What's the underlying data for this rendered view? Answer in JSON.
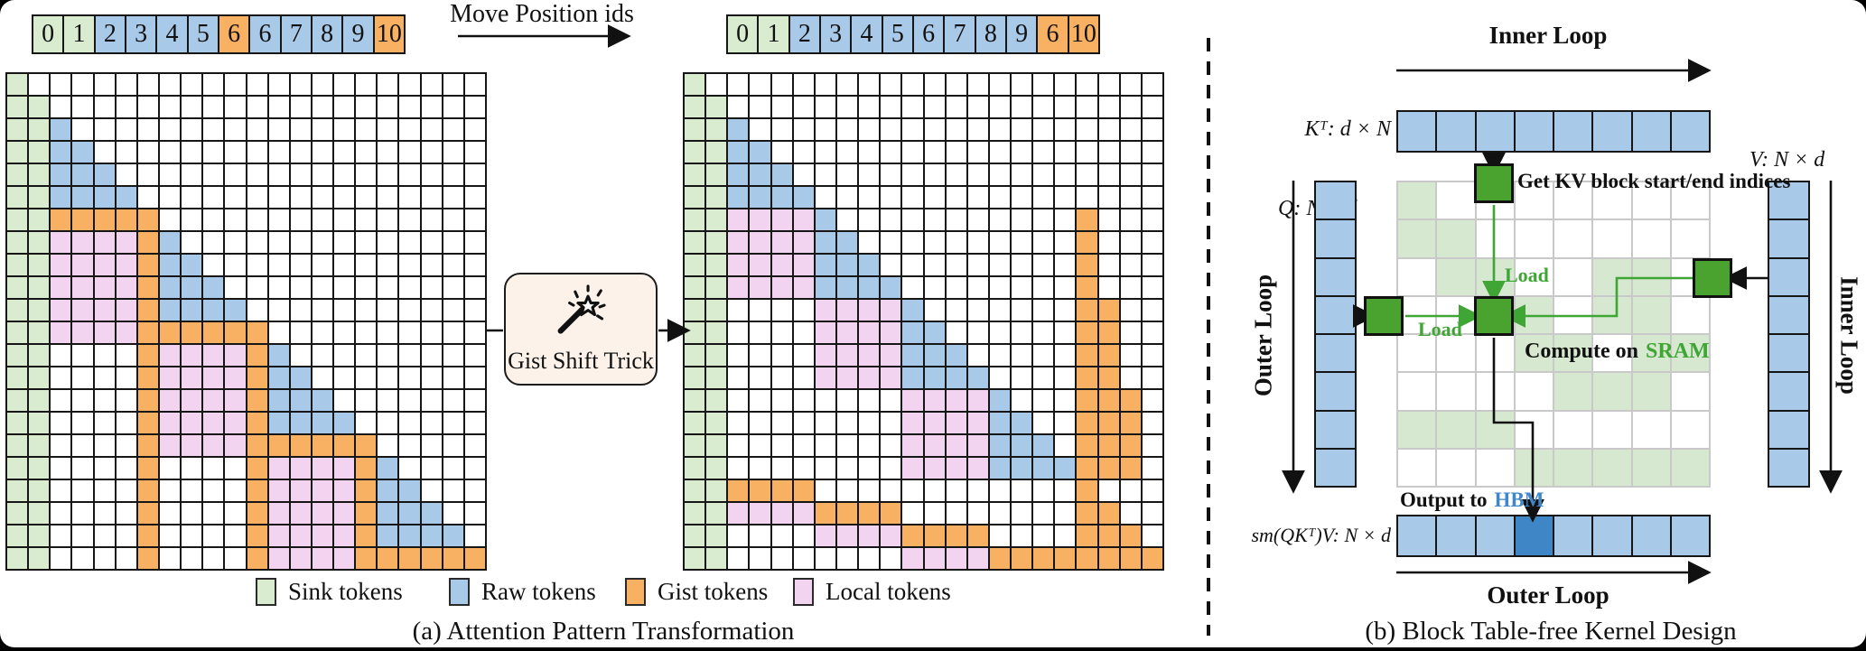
{
  "panel_a": {
    "caption": "(a) Attention Pattern Transformation",
    "move_label": "Move Position ids",
    "gist_box_label": "Gist Shift Trick",
    "sequences": {
      "left": {
        "values": [
          "0",
          "1",
          "2",
          "3",
          "4",
          "5",
          "6",
          "6",
          "7",
          "8",
          "9",
          "10"
        ],
        "colors": [
          "S",
          "S",
          "B",
          "B",
          "B",
          "B",
          "G",
          "B",
          "B",
          "B",
          "B",
          "G"
        ]
      },
      "right": {
        "values": [
          "0",
          "1",
          "2",
          "3",
          "4",
          "5",
          "6",
          "7",
          "8",
          "9",
          "6",
          "10"
        ],
        "colors": [
          "S",
          "S",
          "B",
          "B",
          "B",
          "B",
          "B",
          "B",
          "B",
          "B",
          "G",
          "G"
        ]
      }
    },
    "legend": [
      {
        "label": "Sink tokens",
        "key": "S"
      },
      {
        "label": "Raw tokens",
        "key": "B"
      },
      {
        "label": "Gist tokens",
        "key": "G"
      },
      {
        "label": "Local tokens",
        "key": "L"
      }
    ],
    "grid_left": [
      "S.....................",
      "SS....................",
      "SSB...................",
      "SSBB..................",
      "SSBBB.................",
      "SSBBBB................",
      "SSGGGGG...............",
      "SSLLLLGB..............",
      "SSLLLLGBB.............",
      "SSLLLLGBBB............",
      "SSLLLLGBBBB...........",
      "SSLLLLGGGGGG..........",
      "SS....GLLLLGB.........",
      "SS....GLLLLGBB........",
      "SS....GLLLLGBBB.......",
      "SS....GLLLLGBBBB......",
      "SS....GLLLLGGGGGG.....",
      "SS....G....GLLLLGB....",
      "SS....G....GLLLLGBB...",
      "SS....G....GLLLLGBBB..",
      "SS....G....GLLLLGBBBB.",
      "SS....G....GLLLLGGGGGG"
    ],
    "grid_right": [
      "S.....................",
      "SS....................",
      "SSB...................",
      "SSBB..................",
      "SSBBB.................",
      "SSBBBB................",
      "SSLLLLB...........G...",
      "SSLLLLBB..........G...",
      "SSLLLLBBB.........G...",
      "SSLLLLBBBB........G...",
      "SS....LLLLB.......GG..",
      "SS....LLLLBB......GG..",
      "SS....LLLLBBB.....GG..",
      "SS....LLLLBBBB....GG..",
      "SS........LLLLB...GGG.",
      "SS........LLLLBB..GGG.",
      "SS........LLLLBBB.GGG.",
      "SS........LLLLBBBBGGG.",
      "SSGGGG............G...",
      "SSLLLLGGGG........GG..",
      "SS....LLLLGGGG....GGG.",
      "SS........LLLLGGGGGGGG"
    ]
  },
  "panel_b": {
    "caption": "(b) Block Table-free Kernel Design",
    "inner_loop_top": "Inner Loop",
    "inner_loop_right": "Inner Loop",
    "outer_loop_left": "Outer Loop",
    "outer_loop_bottom": "Outer Loop",
    "k_label": "Kᵀ: d × N",
    "q_label": "Q: N × d",
    "v_label": "V: N × d",
    "output_label": "sm(QKᵀ)V: N × d",
    "get_kv_label": "Get KV block start/end indices",
    "load_label_1": "Load",
    "load_label_2": "Load",
    "compute_label": "Compute on",
    "compute_sram": "SRAM",
    "output_to_label": "Output to",
    "output_hbm": "HBM",
    "k_row": {
      "cells": 8
    },
    "q_col": {
      "cells": 8
    },
    "v_col": {
      "cells": 8
    },
    "output_row": {
      "cells": 8,
      "highlight_index": 3
    },
    "block_grid": [
      "g.......",
      "gg......",
      ".gg..gg.",
      "..gg.gg.",
      "...gg.gg",
      "....ggg.",
      "ggg.....",
      "...ggggg"
    ]
  },
  "colors": {
    "sink": "#d9ecd0",
    "raw": "#a9c9e8",
    "gist": "#f8b063",
    "local": "#f2d3f0",
    "block_green": "#4aa32f",
    "faded_green": "#d6e8cf",
    "output_highlight": "#3e86c6",
    "accent_green": "#3fa535",
    "hbm_blue": "#3f87c8"
  }
}
